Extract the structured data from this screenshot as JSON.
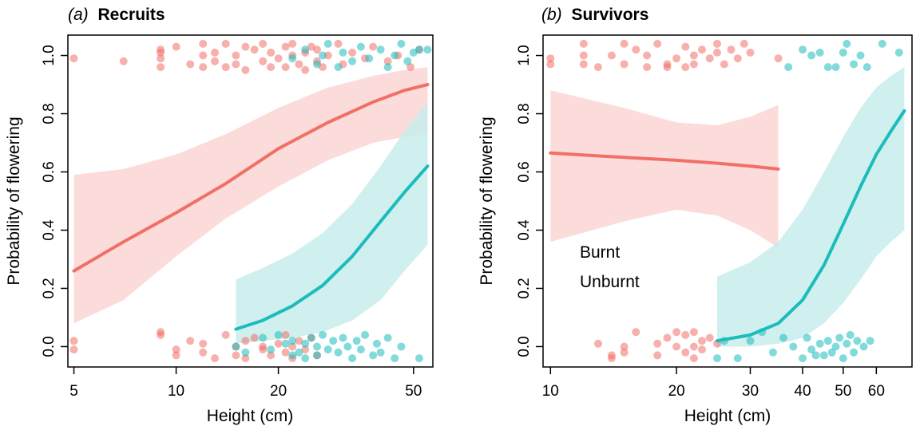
{
  "colors": {
    "burnt": "#f07066",
    "unburnt": "#1bbcbc",
    "burnt_band": "#fbd6d3",
    "unburnt_band": "#c8ecec"
  },
  "chart_data": [
    {
      "type": "line",
      "title_prefix": "(a)",
      "title": "Recruits",
      "xlabel": "Height (cm)",
      "ylabel": "Probability of flowering",
      "x_scale": "log",
      "xlim": [
        4.8,
        57
      ],
      "ylim": [
        -0.07,
        1.07
      ],
      "xticks": [
        5,
        10,
        20,
        50
      ],
      "yticks": [
        0.0,
        0.2,
        0.4,
        0.6,
        0.8,
        1.0
      ],
      "series": [
        {
          "key": "burnt",
          "x": [
            5,
            7,
            10,
            14,
            20,
            28,
            38,
            47,
            55
          ],
          "y": [
            0.26,
            0.36,
            0.46,
            0.56,
            0.68,
            0.77,
            0.84,
            0.88,
            0.9
          ],
          "lower": [
            0.08,
            0.16,
            0.31,
            0.44,
            0.55,
            0.64,
            0.7,
            0.72,
            0.73
          ],
          "upper": [
            0.59,
            0.61,
            0.66,
            0.73,
            0.82,
            0.89,
            0.93,
            0.95,
            0.96
          ]
        },
        {
          "key": "unburnt",
          "x": [
            15,
            18,
            22,
            27,
            33,
            40,
            47,
            55
          ],
          "y": [
            0.06,
            0.09,
            0.14,
            0.21,
            0.31,
            0.43,
            0.53,
            0.62
          ],
          "lower": [
            0.01,
            0.02,
            0.03,
            0.05,
            0.09,
            0.16,
            0.26,
            0.35
          ],
          "upper": [
            0.23,
            0.27,
            0.32,
            0.39,
            0.49,
            0.62,
            0.74,
            0.84
          ]
        }
      ],
      "points": {
        "burnt": [
          [
            5,
            0.99
          ],
          [
            7,
            0.98
          ],
          [
            9,
            1.02
          ],
          [
            9,
            0.99
          ],
          [
            9,
            0.96
          ],
          [
            9,
            1.01
          ],
          [
            10,
            1.03
          ],
          [
            11,
            0.97
          ],
          [
            12,
            1.04
          ],
          [
            12,
            1.0
          ],
          [
            12,
            0.96
          ],
          [
            13,
            0.98
          ],
          [
            13,
            1.01
          ],
          [
            14,
            1.04
          ],
          [
            14,
            0.96
          ],
          [
            15,
            1.0
          ],
          [
            15,
            0.97
          ],
          [
            16,
            1.03
          ],
          [
            16,
            0.95
          ],
          [
            17,
            1.02
          ],
          [
            18,
            0.98
          ],
          [
            18,
            1.04
          ],
          [
            19,
            0.96
          ],
          [
            19,
            1.01
          ],
          [
            20,
            0.99
          ],
          [
            21,
            1.03
          ],
          [
            21,
            0.96
          ],
          [
            22,
            1.0
          ],
          [
            22,
            1.04
          ],
          [
            23,
            0.97
          ],
          [
            24,
            1.01
          ],
          [
            24,
            0.95
          ],
          [
            25,
            1.03
          ],
          [
            26,
            0.98
          ],
          [
            26,
            1.02
          ],
          [
            27,
            0.96
          ],
          [
            28,
            1.0
          ],
          [
            30,
            1.04
          ],
          [
            31,
            0.97
          ],
          [
            33,
            1.01
          ],
          [
            36,
            0.99
          ],
          [
            38,
            1.03
          ],
          [
            42,
            0.98
          ],
          [
            45,
            1.0
          ],
          [
            49,
            0.96
          ],
          [
            52,
            1.02
          ],
          [
            5,
            0.02
          ],
          [
            5,
            -0.01
          ],
          [
            9,
            0.04
          ],
          [
            9,
            0.05
          ],
          [
            10,
            -0.01
          ],
          [
            10,
            -0.03
          ],
          [
            11,
            0.02
          ],
          [
            12,
            -0.02
          ],
          [
            12,
            0.01
          ],
          [
            13,
            -0.04
          ],
          [
            14,
            0.04
          ],
          [
            15,
            0.0
          ],
          [
            15,
            -0.03
          ],
          [
            16,
            0.02
          ],
          [
            16,
            -0.04
          ],
          [
            17,
            0.03
          ],
          [
            18,
            -0.01
          ],
          [
            18,
            0.0
          ],
          [
            19,
            -0.03
          ],
          [
            20,
            0.01
          ],
          [
            21,
            -0.02
          ],
          [
            21,
            0.04
          ],
          [
            22,
            0.0
          ],
          [
            22,
            -0.04
          ],
          [
            23,
            0.02
          ],
          [
            24,
            -0.01
          ],
          [
            25,
            0.03
          ],
          [
            26,
            -0.03
          ]
        ],
        "unburnt": [
          [
            22,
            0.99
          ],
          [
            24,
            1.02
          ],
          [
            26,
            0.97
          ],
          [
            27,
            1.0
          ],
          [
            28,
            1.04
          ],
          [
            30,
            0.96
          ],
          [
            31,
            1.01
          ],
          [
            33,
            0.98
          ],
          [
            35,
            1.03
          ],
          [
            37,
            0.99
          ],
          [
            40,
            1.02
          ],
          [
            42,
            0.96
          ],
          [
            44,
            1.0
          ],
          [
            46,
            1.04
          ],
          [
            48,
            0.98
          ],
          [
            50,
            1.01
          ],
          [
            52,
            1.02
          ],
          [
            55,
            1.02
          ],
          [
            15,
            0.0
          ],
          [
            16,
            -0.02
          ],
          [
            18,
            0.03
          ],
          [
            19,
            -0.01
          ],
          [
            20,
            0.04
          ],
          [
            21,
            0.01
          ],
          [
            22,
            -0.03
          ],
          [
            22,
            0.02
          ],
          [
            23,
            -0.02
          ],
          [
            24,
            0.01
          ],
          [
            24,
            -0.04
          ],
          [
            25,
            0.03
          ],
          [
            26,
            0.0
          ],
          [
            26,
            -0.03
          ],
          [
            27,
            0.04
          ],
          [
            28,
            -0.01
          ],
          [
            29,
            0.02
          ],
          [
            30,
            -0.02
          ],
          [
            31,
            0.03
          ],
          [
            32,
            0.0
          ],
          [
            33,
            -0.04
          ],
          [
            34,
            0.02
          ],
          [
            35,
            -0.01
          ],
          [
            36,
            0.04
          ],
          [
            38,
            -0.03
          ],
          [
            39,
            0.01
          ],
          [
            40,
            -0.02
          ],
          [
            42,
            0.03
          ],
          [
            44,
            -0.04
          ],
          [
            46,
            0.0
          ],
          [
            52,
            -0.04
          ]
        ]
      }
    },
    {
      "type": "line",
      "title_prefix": "(b)",
      "title": "Survivors",
      "xlabel": "Height (cm)",
      "ylabel": "Probability of flowering",
      "x_scale": "log",
      "xlim": [
        9.6,
        73
      ],
      "ylim": [
        -0.07,
        1.07
      ],
      "xticks": [
        10,
        20,
        30,
        40,
        50,
        60
      ],
      "yticks": [
        0.0,
        0.2,
        0.4,
        0.6,
        0.8,
        1.0
      ],
      "legend": {
        "position": "lower-left",
        "entries": [
          {
            "key": "burnt",
            "label": "Burnt"
          },
          {
            "key": "unburnt",
            "label": "Unburnt"
          }
        ]
      },
      "series": [
        {
          "key": "burnt",
          "x": [
            10,
            15,
            20,
            25,
            30,
            35
          ],
          "y": [
            0.665,
            0.65,
            0.64,
            0.63,
            0.62,
            0.61
          ],
          "lower": [
            0.36,
            0.43,
            0.47,
            0.45,
            0.4,
            0.34
          ],
          "upper": [
            0.88,
            0.82,
            0.77,
            0.76,
            0.79,
            0.83
          ]
        },
        {
          "key": "unburnt",
          "x": [
            25,
            30,
            35,
            40,
            45,
            50,
            55,
            60,
            65,
            70
          ],
          "y": [
            0.02,
            0.04,
            0.08,
            0.16,
            0.28,
            0.42,
            0.55,
            0.66,
            0.74,
            0.81
          ],
          "lower": [
            0.0,
            0.0,
            0.01,
            0.03,
            0.08,
            0.15,
            0.23,
            0.31,
            0.36,
            0.4
          ],
          "upper": [
            0.24,
            0.29,
            0.36,
            0.47,
            0.6,
            0.72,
            0.82,
            0.89,
            0.93,
            0.96
          ]
        }
      ],
      "points": {
        "burnt": [
          [
            10,
            0.99
          ],
          [
            10,
            0.97
          ],
          [
            12,
            1.04
          ],
          [
            12,
            1.0
          ],
          [
            12,
            0.97
          ],
          [
            13,
            0.96
          ],
          [
            14,
            1.0
          ],
          [
            15,
            1.04
          ],
          [
            15,
            0.97
          ],
          [
            16,
            1.02
          ],
          [
            17,
            0.96
          ],
          [
            17,
            1.0
          ],
          [
            18,
            1.04
          ],
          [
            19,
            0.97
          ],
          [
            19,
            0.96
          ],
          [
            20,
            0.99
          ],
          [
            21,
            1.03
          ],
          [
            21,
            0.96
          ],
          [
            22,
            1.0
          ],
          [
            22,
            0.97
          ],
          [
            23,
            1.02
          ],
          [
            24,
            0.99
          ],
          [
            25,
            1.04
          ],
          [
            25,
            1.01
          ],
          [
            26,
            0.97
          ],
          [
            27,
            1.02
          ],
          [
            28,
            0.99
          ],
          [
            29,
            1.04
          ],
          [
            30,
            1.01
          ],
          [
            35,
            0.99
          ],
          [
            13,
            0.01
          ],
          [
            14,
            -0.04
          ],
          [
            14,
            -0.03
          ],
          [
            15,
            0.0
          ],
          [
            15,
            -0.02
          ],
          [
            16,
            0.05
          ],
          [
            18,
            0.01
          ],
          [
            18,
            -0.03
          ],
          [
            19,
            0.03
          ],
          [
            20,
            0.05
          ],
          [
            20,
            0.0
          ],
          [
            21,
            -0.02
          ],
          [
            21,
            0.04
          ],
          [
            22,
            0.0
          ],
          [
            22,
            -0.04
          ],
          [
            22,
            0.05
          ],
          [
            23,
            0.02
          ],
          [
            23,
            -0.01
          ],
          [
            24,
            0.03
          ],
          [
            25,
            0.01
          ]
        ],
        "unburnt": [
          [
            37,
            0.96
          ],
          [
            40,
            1.02
          ],
          [
            42,
            1.0
          ],
          [
            44,
            1.01
          ],
          [
            46,
            0.96
          ],
          [
            48,
            0.96
          ],
          [
            50,
            1.01
          ],
          [
            51,
            1.04
          ],
          [
            53,
            0.97
          ],
          [
            55,
            1.0
          ],
          [
            57,
            0.96
          ],
          [
            62,
            1.04
          ],
          [
            68,
            1.01
          ],
          [
            25,
            -0.04
          ],
          [
            26,
            0.02
          ],
          [
            28,
            -0.04
          ],
          [
            30,
            0.02
          ],
          [
            32,
            0.05
          ],
          [
            34,
            -0.02
          ],
          [
            36,
            0.03
          ],
          [
            38,
            0.0
          ],
          [
            40,
            -0.04
          ],
          [
            41,
            0.03
          ],
          [
            42,
            -0.01
          ],
          [
            43,
            -0.03
          ],
          [
            44,
            0.01
          ],
          [
            45,
            -0.03
          ],
          [
            46,
            0.02
          ],
          [
            47,
            -0.02
          ],
          [
            48,
            0.0
          ],
          [
            49,
            0.03
          ],
          [
            50,
            -0.04
          ],
          [
            51,
            0.01
          ],
          [
            52,
            0.04
          ],
          [
            53,
            -0.02
          ],
          [
            54,
            0.02
          ],
          [
            56,
            0.0
          ],
          [
            58,
            0.02
          ]
        ]
      }
    }
  ]
}
